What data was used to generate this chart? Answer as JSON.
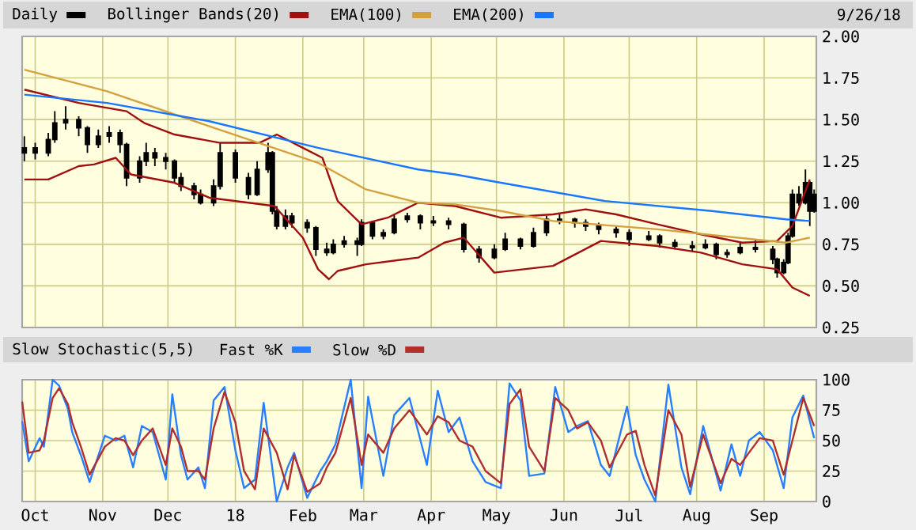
{
  "chart_data": [
    {
      "type": "candlestick",
      "legend": "top left",
      "grid": true,
      "tick_labels": "y",
      "annotations": [
        "9/26/18"
      ],
      "xlim": [
        "2017-09-25",
        "2018-09-25"
      ],
      "xticks": [
        {
          "value": "2017-10-01",
          "label": null
        },
        {
          "value": "2017-11-01",
          "label": null
        },
        {
          "value": "2017-12-01",
          "label": null
        },
        {
          "value": "2018-01-01",
          "label": null
        },
        {
          "value": "2018-02-01",
          "label": null
        },
        {
          "value": "2018-03-01",
          "label": null
        },
        {
          "value": "2018-04-01",
          "label": null
        },
        {
          "value": "2018-05-01",
          "label": null
        },
        {
          "value": "2018-06-01",
          "label": null
        },
        {
          "value": "2018-07-01",
          "label": null
        },
        {
          "value": "2018-08-01",
          "label": null
        },
        {
          "value": "2018-09-01",
          "label": null
        }
      ],
      "ylim": [
        0.25,
        2.0
      ],
      "yticks": [
        {
          "value": 0.25,
          "label": "0.25"
        },
        {
          "value": 0.5,
          "label": "0.50"
        },
        {
          "value": 0.75,
          "label": "0.75"
        },
        {
          "value": 1.0,
          "label": "1.00"
        },
        {
          "value": 1.25,
          "label": "1.25"
        },
        {
          "value": 1.5,
          "label": "1.50"
        },
        {
          "value": 1.75,
          "label": "1.75"
        },
        {
          "value": 2.0,
          "label": "2.00"
        }
      ],
      "series": [
        {
          "type": "candlestick",
          "name": "Daily",
          "color": "#000000",
          "x": [
            "2017-09-26",
            "2017-10-01",
            "2017-10-07",
            "2017-10-10",
            "2017-10-15",
            "2017-10-21",
            "2017-10-25",
            "2017-10-30",
            "2017-11-04",
            "2017-11-09",
            "2017-11-12",
            "2017-11-18",
            "2017-11-21",
            "2017-11-25",
            "2017-11-30",
            "2017-12-04",
            "2017-12-07",
            "2017-12-13",
            "2017-12-16",
            "2017-12-22",
            "2017-12-25",
            "2018-01-01",
            "2018-01-07",
            "2018-01-11",
            "2018-01-16",
            "2018-01-18",
            "2018-01-20",
            "2018-01-24",
            "2018-01-27",
            "2018-02-03",
            "2018-02-07",
            "2018-02-12",
            "2018-02-15",
            "2018-02-20",
            "2018-02-26",
            "2018-02-28",
            "2018-03-05",
            "2018-03-10",
            "2018-03-15",
            "2018-03-21",
            "2018-03-27",
            "2018-04-02",
            "2018-04-09",
            "2018-04-16",
            "2018-04-23",
            "2018-04-30",
            "2018-05-05",
            "2018-05-12",
            "2018-05-18",
            "2018-05-24",
            "2018-05-30",
            "2018-06-06",
            "2018-06-11",
            "2018-06-17",
            "2018-06-25",
            "2018-07-01",
            "2018-07-10",
            "2018-07-15",
            "2018-07-22",
            "2018-07-30",
            "2018-08-05",
            "2018-08-10",
            "2018-08-15",
            "2018-08-21",
            "2018-08-28",
            "2018-09-05",
            "2018-09-07",
            "2018-09-10",
            "2018-09-12",
            "2018-09-14",
            "2018-09-17",
            "2018-09-20",
            "2018-09-22",
            "2018-09-24"
          ],
          "ohlc": [
            [
              1.3,
              1.4,
              1.25,
              1.33
            ],
            [
              1.33,
              1.36,
              1.26,
              1.3
            ],
            [
              1.3,
              1.42,
              1.28,
              1.38
            ],
            [
              1.38,
              1.55,
              1.36,
              1.48
            ],
            [
              1.48,
              1.58,
              1.44,
              1.5
            ],
            [
              1.5,
              1.52,
              1.4,
              1.45
            ],
            [
              1.45,
              1.46,
              1.3,
              1.35
            ],
            [
              1.35,
              1.44,
              1.33,
              1.4
            ],
            [
              1.4,
              1.46,
              1.36,
              1.42
            ],
            [
              1.42,
              1.44,
              1.3,
              1.35
            ],
            [
              1.35,
              1.36,
              1.1,
              1.15
            ],
            [
              1.15,
              1.28,
              1.12,
              1.25
            ],
            [
              1.25,
              1.36,
              1.22,
              1.3
            ],
            [
              1.3,
              1.33,
              1.22,
              1.27
            ],
            [
              1.27,
              1.3,
              1.2,
              1.25
            ],
            [
              1.25,
              1.26,
              1.12,
              1.15
            ],
            [
              1.15,
              1.18,
              1.07,
              1.1
            ],
            [
              1.1,
              1.12,
              1.02,
              1.05
            ],
            [
              1.05,
              1.08,
              0.99,
              1.0
            ],
            [
              1.0,
              1.14,
              0.98,
              1.1
            ],
            [
              1.1,
              1.36,
              1.08,
              1.3
            ],
            [
              1.3,
              1.32,
              1.12,
              1.15
            ],
            [
              1.15,
              1.18,
              1.02,
              1.05
            ],
            [
              1.05,
              1.25,
              1.04,
              1.2
            ],
            [
              1.2,
              1.36,
              1.18,
              1.3
            ],
            [
              1.3,
              1.31,
              0.93,
              0.95
            ],
            [
              0.95,
              0.98,
              0.84,
              0.86
            ],
            [
              0.86,
              0.96,
              0.84,
              0.92
            ],
            [
              0.92,
              0.94,
              0.85,
              0.88
            ],
            [
              0.88,
              0.9,
              0.82,
              0.85
            ],
            [
              0.85,
              0.86,
              0.68,
              0.72
            ],
            [
              0.72,
              0.76,
              0.68,
              0.7
            ],
            [
              0.7,
              0.78,
              0.69,
              0.75
            ],
            [
              0.75,
              0.8,
              0.73,
              0.77
            ],
            [
              0.77,
              0.79,
              0.68,
              0.75
            ],
            [
              0.75,
              0.9,
              0.74,
              0.88
            ],
            [
              0.88,
              0.89,
              0.78,
              0.8
            ],
            [
              0.8,
              0.84,
              0.78,
              0.82
            ],
            [
              0.82,
              0.93,
              0.81,
              0.9
            ],
            [
              0.9,
              0.94,
              0.88,
              0.92
            ],
            [
              0.92,
              0.93,
              0.84,
              0.88
            ],
            [
              0.88,
              0.92,
              0.86,
              0.89
            ],
            [
              0.89,
              0.91,
              0.84,
              0.87
            ],
            [
              0.87,
              0.88,
              0.7,
              0.72
            ],
            [
              0.72,
              0.74,
              0.64,
              0.67
            ],
            [
              0.67,
              0.75,
              0.66,
              0.72
            ],
            [
              0.72,
              0.82,
              0.71,
              0.78
            ],
            [
              0.78,
              0.79,
              0.72,
              0.74
            ],
            [
              0.74,
              0.85,
              0.73,
              0.82
            ],
            [
              0.82,
              0.92,
              0.8,
              0.9
            ],
            [
              0.89,
              0.93,
              0.87,
              0.9
            ],
            [
              0.9,
              0.91,
              0.85,
              0.88
            ],
            [
              0.88,
              0.9,
              0.83,
              0.86
            ],
            [
              0.86,
              0.88,
              0.81,
              0.84
            ],
            [
              0.84,
              0.86,
              0.79,
              0.82
            ],
            [
              0.82,
              0.84,
              0.74,
              0.78
            ],
            [
              0.78,
              0.83,
              0.77,
              0.8
            ],
            [
              0.8,
              0.81,
              0.73,
              0.76
            ],
            [
              0.76,
              0.78,
              0.72,
              0.74
            ],
            [
              0.74,
              0.77,
              0.71,
              0.73
            ],
            [
              0.73,
              0.78,
              0.72,
              0.75
            ],
            [
              0.75,
              0.76,
              0.66,
              0.69
            ],
            [
              0.69,
              0.72,
              0.67,
              0.7
            ],
            [
              0.7,
              0.76,
              0.69,
              0.73
            ],
            [
              0.73,
              0.78,
              0.7,
              0.72
            ],
            [
              0.72,
              0.74,
              0.63,
              0.66
            ],
            [
              0.66,
              0.67,
              0.55,
              0.58
            ],
            [
              0.58,
              0.66,
              0.57,
              0.64
            ],
            [
              0.64,
              0.82,
              0.63,
              0.8
            ],
            [
              0.8,
              1.08,
              0.79,
              1.05
            ],
            [
              1.05,
              1.1,
              0.98,
              1.0
            ],
            [
              1.0,
              1.2,
              0.99,
              1.12
            ],
            [
              1.12,
              1.13,
              0.86,
              0.95
            ],
            [
              0.95,
              1.08,
              0.94,
              1.05
            ]
          ]
        },
        {
          "type": "line",
          "name": "Bollinger Bands(20)",
          "color": "#a01010",
          "x": [
            "2017-09-26",
            "2017-10-21",
            "2017-11-12",
            "2017-11-20",
            "2017-12-04",
            "2017-12-25",
            "2018-01-12",
            "2018-01-20",
            "2018-02-01",
            "2018-02-10",
            "2018-02-17",
            "2018-02-28",
            "2018-03-12",
            "2018-03-26",
            "2018-04-12",
            "2018-05-03",
            "2018-05-27",
            "2018-06-11",
            "2018-06-25",
            "2018-07-14",
            "2018-08-03",
            "2018-08-22",
            "2018-09-07",
            "2018-09-14",
            "2018-09-22"
          ],
          "values": [
            1.68,
            1.6,
            1.55,
            1.48,
            1.41,
            1.36,
            1.36,
            1.41,
            1.33,
            1.27,
            1.01,
            0.87,
            0.91,
            1.0,
            0.98,
            0.91,
            0.93,
            0.96,
            0.93,
            0.87,
            0.81,
            0.76,
            0.77,
            0.86,
            1.14
          ]
        },
        {
          "type": "line",
          "color": "#a01010",
          "x": [
            "2017-09-26",
            "2017-10-07",
            "2017-10-21",
            "2017-10-28",
            "2017-11-07",
            "2017-11-14",
            "2017-12-04",
            "2017-12-20",
            "2018-01-07",
            "2018-01-19",
            "2018-02-01",
            "2018-02-08",
            "2018-02-13",
            "2018-02-17",
            "2018-03-02",
            "2018-03-26",
            "2018-04-07",
            "2018-04-16",
            "2018-04-30",
            "2018-05-27",
            "2018-06-18",
            "2018-07-14",
            "2018-08-03",
            "2018-08-22",
            "2018-09-07",
            "2018-09-14",
            "2018-09-22"
          ],
          "values": [
            1.14,
            1.14,
            1.22,
            1.23,
            1.27,
            1.17,
            1.12,
            1.03,
            1.0,
            0.98,
            0.79,
            0.6,
            0.54,
            0.59,
            0.63,
            0.67,
            0.76,
            0.79,
            0.58,
            0.62,
            0.77,
            0.74,
            0.7,
            0.63,
            0.6,
            0.49,
            0.44
          ]
        },
        {
          "type": "line",
          "name": "EMA(100)",
          "color": "#d4a040",
          "x": [
            "2017-09-26",
            "2017-11-03",
            "2017-12-20",
            "2018-02-08",
            "2018-03-02",
            "2018-03-26",
            "2018-04-12",
            "2018-05-03",
            "2018-05-27",
            "2018-07-14",
            "2018-08-27",
            "2018-09-11",
            "2018-09-22"
          ],
          "values": [
            1.8,
            1.67,
            1.46,
            1.24,
            1.08,
            1.0,
            0.99,
            0.95,
            0.89,
            0.84,
            0.78,
            0.76,
            0.79
          ]
        },
        {
          "type": "line",
          "name": "EMA(200)",
          "color": "#1a75ff",
          "x": [
            "2017-09-26",
            "2017-11-03",
            "2017-12-20",
            "2018-02-08",
            "2018-03-26",
            "2018-04-12",
            "2018-05-03",
            "2018-06-20",
            "2018-08-08",
            "2018-09-11",
            "2018-09-22"
          ],
          "values": [
            1.65,
            1.6,
            1.49,
            1.33,
            1.2,
            1.17,
            1.12,
            1.01,
            0.95,
            0.9,
            0.89
          ]
        }
      ]
    },
    {
      "type": "line",
      "title": "Slow Stochastic(5,5)",
      "legend": "top left",
      "grid": true,
      "xlim": [
        "2017-09-25",
        "2018-09-25"
      ],
      "xticks": [
        {
          "value": "2017-10-01",
          "label": "Oct"
        },
        {
          "value": "2017-11-01",
          "label": "Nov"
        },
        {
          "value": "2017-12-01",
          "label": "Dec"
        },
        {
          "value": "2018-01-01",
          "label": "18"
        },
        {
          "value": "2018-02-01",
          "label": "Feb"
        },
        {
          "value": "2018-03-01",
          "label": "Mar"
        },
        {
          "value": "2018-04-01",
          "label": "Apr"
        },
        {
          "value": "2018-05-01",
          "label": "May"
        },
        {
          "value": "2018-06-01",
          "label": "Jun"
        },
        {
          "value": "2018-07-01",
          "label": "Jul"
        },
        {
          "value": "2018-08-01",
          "label": "Aug"
        },
        {
          "value": "2018-09-01",
          "label": "Sep"
        }
      ],
      "ylim": [
        0,
        100
      ],
      "yticks": [
        0,
        25,
        50,
        75,
        100
      ],
      "x": [
        "2017-09-25",
        "2017-09-28",
        "2017-10-03",
        "2017-10-05",
        "2017-10-09",
        "2017-10-12",
        "2017-10-16",
        "2017-10-18",
        "2017-10-22",
        "2017-10-26",
        "2017-11-02",
        "2017-11-07",
        "2017-11-11",
        "2017-11-15",
        "2017-11-19",
        "2017-11-24",
        "2017-11-30",
        "2017-12-03",
        "2017-12-07",
        "2017-12-10",
        "2017-12-15",
        "2017-12-18",
        "2017-12-22",
        "2017-12-27",
        "2018-01-01",
        "2018-01-05",
        "2018-01-10",
        "2018-01-14",
        "2018-01-20",
        "2018-01-25",
        "2018-01-28",
        "2018-02-03",
        "2018-02-09",
        "2018-02-12",
        "2018-02-16",
        "2018-02-23",
        "2018-02-28",
        "2018-03-03",
        "2018-03-10",
        "2018-03-15",
        "2018-03-22",
        "2018-03-30",
        "2018-04-04",
        "2018-04-09",
        "2018-04-14",
        "2018-04-20",
        "2018-04-26",
        "2018-05-03",
        "2018-05-07",
        "2018-05-12",
        "2018-05-16",
        "2018-05-23",
        "2018-05-28",
        "2018-06-03",
        "2018-06-07",
        "2018-06-12",
        "2018-06-18",
        "2018-06-22",
        "2018-06-30",
        "2018-07-04",
        "2018-07-08",
        "2018-07-13",
        "2018-07-19",
        "2018-07-25",
        "2018-07-29",
        "2018-08-04",
        "2018-08-12",
        "2018-08-17",
        "2018-08-21",
        "2018-08-25",
        "2018-08-30",
        "2018-09-05",
        "2018-09-10",
        "2018-09-14",
        "2018-09-19",
        "2018-09-24"
      ],
      "series": [
        {
          "name": "Fast %K",
          "color": "#2a7fff",
          "values": [
            66,
            33,
            52,
            45,
            100,
            95,
            76,
            57,
            38,
            16,
            54,
            50,
            54,
            28,
            62,
            57,
            18,
            88,
            38,
            18,
            28,
            11,
            83,
            94,
            42,
            11,
            18,
            81,
            0,
            28,
            40,
            3,
            25,
            33,
            47,
            100,
            11,
            86,
            21,
            71,
            85,
            30,
            91,
            57,
            69,
            33,
            16,
            11,
            97,
            83,
            21,
            23,
            94,
            57,
            62,
            66,
            30,
            21,
            78,
            38,
            18,
            0,
            96,
            28,
            6,
            62,
            9,
            47,
            21,
            50,
            57,
            42,
            11,
            69,
            87,
            52
          ]
        },
        {
          "name": "Slow %D",
          "color": "#b03030",
          "values": [
            82,
            40,
            42,
            50,
            85,
            93,
            80,
            65,
            45,
            22,
            45,
            52,
            50,
            38,
            50,
            60,
            30,
            60,
            45,
            25,
            25,
            18,
            60,
            90,
            65,
            25,
            10,
            60,
            40,
            10,
            38,
            8,
            15,
            28,
            40,
            85,
            30,
            55,
            40,
            60,
            75,
            55,
            70,
            65,
            50,
            45,
            25,
            15,
            80,
            92,
            45,
            25,
            85,
            75,
            60,
            65,
            50,
            28,
            55,
            58,
            30,
            5,
            75,
            55,
            12,
            55,
            15,
            35,
            30,
            40,
            52,
            50,
            22,
            50,
            85,
            62
          ]
        }
      ]
    }
  ]
}
